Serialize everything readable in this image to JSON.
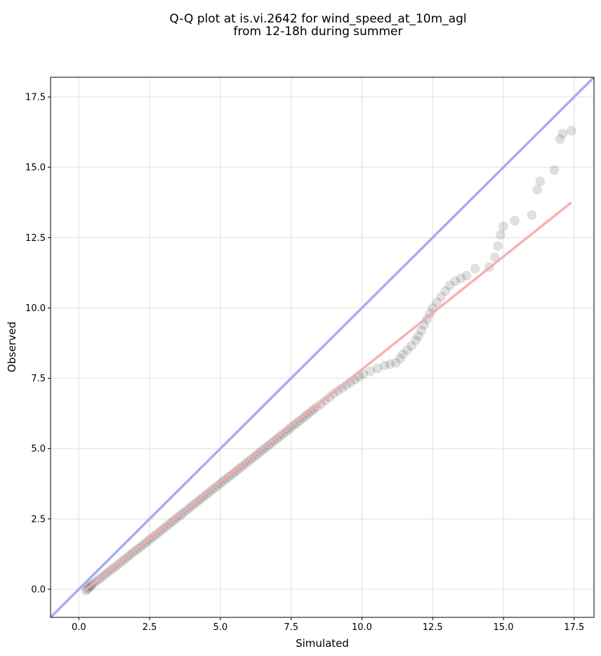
{
  "chart_data": {
    "type": "scatter",
    "title": "Q-Q plot at is.vi.2642 for wind_speed_at_10m_agl",
    "subtitle": "from 12-18h during summer",
    "xlabel": "Simulated",
    "ylabel": "Observed",
    "xlim": [
      -1.0,
      18.2
    ],
    "ylim": [
      -1.0,
      18.2
    ],
    "xticks": [
      "0.0",
      "2.5",
      "5.0",
      "7.5",
      "10.0",
      "12.5",
      "15.0",
      "17.5"
    ],
    "yticks": [
      "0.0",
      "2.5",
      "5.0",
      "7.5",
      "10.0",
      "12.5",
      "15.0",
      "17.5"
    ],
    "grid": true,
    "colors": {
      "points": "#000000",
      "identity_line": "#aaaaf2",
      "fit_line": "#f5a8a8"
    },
    "reference_lines": [
      {
        "kind": "identity",
        "x": [
          -1.0,
          18.2
        ],
        "y": [
          -1.0,
          18.2
        ]
      },
      {
        "kind": "fit",
        "x": [
          0.2,
          17.4
        ],
        "y": [
          -0.05,
          13.75
        ]
      }
    ],
    "points": [
      [
        0.25,
        -0.05
      ],
      [
        0.3,
        0.0
      ],
      [
        0.35,
        0.05
      ],
      [
        0.4,
        0.1
      ],
      [
        0.45,
        0.14
      ],
      [
        0.5,
        0.2
      ],
      [
        0.6,
        0.27
      ],
      [
        0.7,
        0.34
      ],
      [
        0.8,
        0.42
      ],
      [
        0.9,
        0.5
      ],
      [
        1.0,
        0.58
      ],
      [
        1.1,
        0.66
      ],
      [
        1.2,
        0.73
      ],
      [
        1.3,
        0.81
      ],
      [
        1.4,
        0.89
      ],
      [
        1.5,
        0.97
      ],
      [
        1.6,
        1.05
      ],
      [
        1.7,
        1.13
      ],
      [
        1.8,
        1.21
      ],
      [
        1.9,
        1.29
      ],
      [
        2.0,
        1.37
      ],
      [
        2.1,
        1.45
      ],
      [
        2.2,
        1.52
      ],
      [
        2.3,
        1.6
      ],
      [
        2.4,
        1.68
      ],
      [
        2.5,
        1.76
      ],
      [
        2.6,
        1.84
      ],
      [
        2.7,
        1.92
      ],
      [
        2.8,
        2.0
      ],
      [
        2.9,
        2.08
      ],
      [
        3.0,
        2.16
      ],
      [
        3.1,
        2.24
      ],
      [
        3.2,
        2.32
      ],
      [
        3.3,
        2.4
      ],
      [
        3.4,
        2.48
      ],
      [
        3.5,
        2.56
      ],
      [
        3.6,
        2.64
      ],
      [
        3.7,
        2.72
      ],
      [
        3.8,
        2.8
      ],
      [
        3.9,
        2.88
      ],
      [
        4.0,
        2.96
      ],
      [
        4.1,
        3.04
      ],
      [
        4.2,
        3.12
      ],
      [
        4.3,
        3.2
      ],
      [
        4.4,
        3.28
      ],
      [
        4.5,
        3.36
      ],
      [
        4.6,
        3.44
      ],
      [
        4.7,
        3.52
      ],
      [
        4.8,
        3.6
      ],
      [
        4.9,
        3.68
      ],
      [
        5.0,
        3.76
      ],
      [
        5.1,
        3.84
      ],
      [
        5.2,
        3.92
      ],
      [
        5.3,
        4.0
      ],
      [
        5.4,
        4.07
      ],
      [
        5.5,
        4.15
      ],
      [
        5.6,
        4.23
      ],
      [
        5.7,
        4.31
      ],
      [
        5.8,
        4.39
      ],
      [
        5.9,
        4.47
      ],
      [
        6.0,
        4.55
      ],
      [
        6.1,
        4.63
      ],
      [
        6.2,
        4.71
      ],
      [
        6.3,
        4.79
      ],
      [
        6.4,
        4.87
      ],
      [
        6.5,
        4.95
      ],
      [
        6.6,
        5.03
      ],
      [
        6.7,
        5.11
      ],
      [
        6.8,
        5.19
      ],
      [
        6.9,
        5.27
      ],
      [
        7.0,
        5.35
      ],
      [
        7.1,
        5.43
      ],
      [
        7.2,
        5.51
      ],
      [
        7.3,
        5.59
      ],
      [
        7.4,
        5.67
      ],
      [
        7.5,
        5.75
      ],
      [
        7.6,
        5.83
      ],
      [
        7.7,
        5.91
      ],
      [
        7.8,
        5.99
      ],
      [
        7.9,
        6.07
      ],
      [
        8.0,
        6.15
      ],
      [
        8.1,
        6.23
      ],
      [
        8.2,
        6.31
      ],
      [
        8.3,
        6.39
      ],
      [
        8.4,
        6.47
      ],
      [
        8.55,
        6.58
      ],
      [
        8.7,
        6.7
      ],
      [
        8.85,
        6.82
      ],
      [
        9.0,
        6.95
      ],
      [
        9.15,
        7.05
      ],
      [
        9.3,
        7.15
      ],
      [
        9.45,
        7.25
      ],
      [
        9.6,
        7.35
      ],
      [
        9.75,
        7.45
      ],
      [
        9.9,
        7.55
      ],
      [
        10.05,
        7.65
      ],
      [
        10.3,
        7.75
      ],
      [
        10.55,
        7.85
      ],
      [
        10.8,
        7.95
      ],
      [
        11.0,
        8.0
      ],
      [
        11.2,
        8.05
      ],
      [
        11.35,
        8.2
      ],
      [
        11.45,
        8.35
      ],
      [
        11.6,
        8.5
      ],
      [
        11.75,
        8.65
      ],
      [
        11.9,
        8.85
      ],
      [
        12.0,
        9.0
      ],
      [
        12.1,
        9.2
      ],
      [
        12.2,
        9.4
      ],
      [
        12.3,
        9.6
      ],
      [
        12.4,
        9.8
      ],
      [
        12.5,
        10.0
      ],
      [
        12.65,
        10.2
      ],
      [
        12.8,
        10.4
      ],
      [
        12.95,
        10.6
      ],
      [
        13.1,
        10.8
      ],
      [
        13.3,
        10.95
      ],
      [
        13.5,
        11.05
      ],
      [
        13.7,
        11.15
      ],
      [
        14.0,
        11.4
      ],
      [
        14.5,
        11.45
      ],
      [
        14.7,
        11.8
      ],
      [
        14.8,
        12.2
      ],
      [
        14.9,
        12.6
      ],
      [
        15.0,
        12.9
      ],
      [
        15.4,
        13.1
      ],
      [
        16.0,
        13.3
      ],
      [
        16.2,
        14.2
      ],
      [
        16.3,
        14.5
      ],
      [
        16.8,
        14.9
      ],
      [
        17.0,
        16.0
      ],
      [
        17.1,
        16.2
      ],
      [
        17.4,
        16.3
      ]
    ]
  }
}
